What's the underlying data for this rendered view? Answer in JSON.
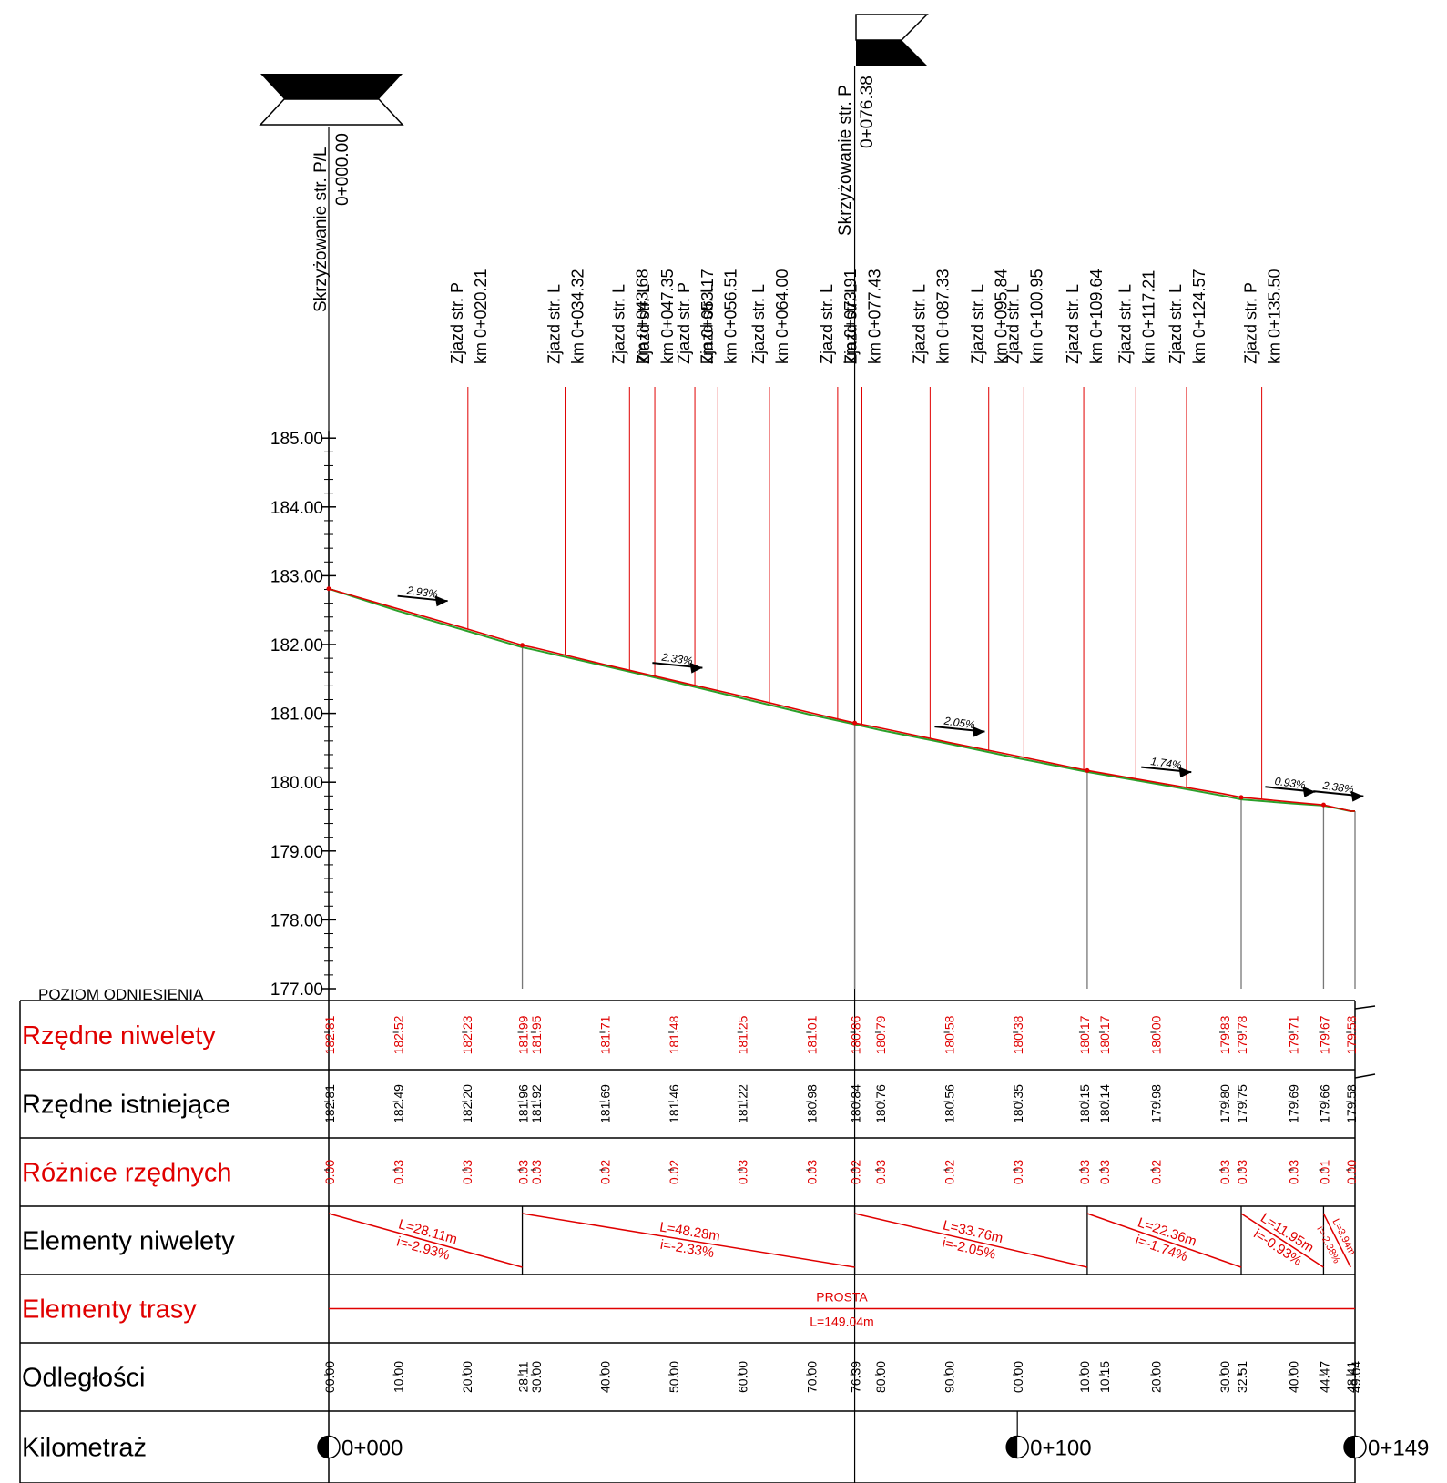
{
  "profile": {
    "yaxis_labels": [
      "185.00",
      "184.00",
      "183.00",
      "182.00",
      "181.00",
      "180.00",
      "179.00",
      "178.00",
      "177.00"
    ],
    "yaxis_values": [
      185,
      184,
      183,
      182,
      181,
      180,
      179,
      178,
      177
    ],
    "reference_label": "POZIOM ODNIESIENIA",
    "total_length": 149.04
  },
  "markers": {
    "start": {
      "label": "Skrzyżowanie str. P/L",
      "km": "0+000.00",
      "station": 0
    },
    "mid": {
      "label": "Skrzyżowanie str. P",
      "km": "0+076.38",
      "station": 76.38
    }
  },
  "annotations": [
    {
      "title": "Zjazd str. P",
      "km": "km 0+020.21",
      "station": 20.21
    },
    {
      "title": "Zjazd str. L",
      "km": "km 0+034.32",
      "station": 34.32
    },
    {
      "title": "Zjazd str. L",
      "km": "km 0+043.68",
      "station": 43.68
    },
    {
      "title": "Zjazd str. L",
      "km": "km 0+047.35",
      "station": 47.35
    },
    {
      "title": "Zjazd str. P",
      "km": "km 0+053.17",
      "station": 53.17
    },
    {
      "title": "Zjazd str. L",
      "km": "km 0+056.51",
      "station": 56.51
    },
    {
      "title": "Zjazd str. L",
      "km": "km 0+064.00",
      "station": 64.0
    },
    {
      "title": "Zjazd str. L",
      "km": "km 0+073.91",
      "station": 73.91
    },
    {
      "title": "Zjazd str. L",
      "km": "km 0+077.43",
      "station": 77.43
    },
    {
      "title": "Zjazd str. L",
      "km": "km 0+087.33",
      "station": 87.33
    },
    {
      "title": "Zjazd str. L",
      "km": "km 0+095.84",
      "station": 95.84
    },
    {
      "title": "Zjazd str. L",
      "km": "km 0+100.95",
      "station": 100.95
    },
    {
      "title": "Zjazd str. L",
      "km": "km 0+109.64",
      "station": 109.64
    },
    {
      "title": "Zjazd str. L",
      "km": "km 0+117.21",
      "station": 117.21
    },
    {
      "title": "Zjazd str. L",
      "km": "km 0+124.57",
      "station": 124.57
    },
    {
      "title": "Zjazd str. P",
      "km": "km 0+135.50",
      "station": 135.5
    }
  ],
  "grade_labels": [
    {
      "text": "2.93%",
      "station": 10
    },
    {
      "text": "2.33%",
      "station": 47
    },
    {
      "text": "2.05%",
      "station": 88
    },
    {
      "text": "1.74%",
      "station": 118
    },
    {
      "text": "0.93%",
      "station": 136
    },
    {
      "text": "2.38%",
      "station": 143
    }
  ],
  "break_stations": [
    28.11,
    76.38,
    110.15,
    132.51,
    144.47
  ],
  "chart_data": {
    "type": "line",
    "x": [
      0,
      10,
      20,
      28.11,
      30,
      40,
      50,
      60,
      70,
      76.39,
      80,
      90,
      100,
      110.15,
      120,
      130,
      132.51,
      140,
      144.47,
      148.41,
      149.04
    ],
    "series": [
      {
        "values": [
          182.81,
          182.52,
          182.23,
          181.99,
          181.95,
          181.71,
          181.48,
          181.25,
          181.01,
          180.86,
          180.79,
          180.58,
          180.38,
          180.17,
          180.0,
          179.83,
          179.78,
          179.71,
          179.67,
          179.58,
          179.58
        ]
      },
      {
        "values": [
          182.81,
          182.49,
          182.2,
          181.96,
          181.92,
          181.69,
          181.46,
          181.22,
          180.98,
          180.84,
          180.76,
          180.56,
          180.35,
          180.15,
          179.98,
          179.8,
          179.75,
          179.69,
          179.66,
          179.58,
          179.58
        ]
      }
    ],
    "ylim": [
      177,
      185
    ]
  },
  "table": {
    "rows": [
      {
        "label": "Rzędne niwelety",
        "color": "#e00000"
      },
      {
        "label": "Rzędne istniejące",
        "color": "#000000"
      },
      {
        "label": "Różnice rzędnych",
        "color": "#e00000"
      },
      {
        "label": "Elementy niwelety",
        "color": "#000000"
      },
      {
        "label": "Elementy trasy",
        "color": "#e00000"
      },
      {
        "label": "Odległości",
        "color": "#000000"
      },
      {
        "label": "Kilometraż",
        "color": "#000000"
      }
    ],
    "columns": [
      {
        "station": 0,
        "niw": "182.81",
        "ist": "182.81",
        "diff": "0.00",
        "dist": "00.00"
      },
      {
        "station": 10,
        "niw": "182.52",
        "ist": "182.49",
        "diff": "0.03",
        "dist": "10.00"
      },
      {
        "station": 20,
        "niw": "182.23",
        "ist": "182.20",
        "diff": "0.03",
        "dist": "20.00"
      },
      {
        "station": 28.11,
        "niw": "181.99",
        "ist": "181.96",
        "diff": "0.03",
        "dist": "28.11"
      },
      {
        "station": 30,
        "niw": "181.95",
        "ist": "181.92",
        "diff": "0.03",
        "dist": "30.00"
      },
      {
        "station": 40,
        "niw": "181.71",
        "ist": "181.69",
        "diff": "0.02",
        "dist": "40.00"
      },
      {
        "station": 50,
        "niw": "181.48",
        "ist": "181.46",
        "diff": "0.02",
        "dist": "50.00"
      },
      {
        "station": 60,
        "niw": "181.25",
        "ist": "181.22",
        "diff": "0.03",
        "dist": "60.00"
      },
      {
        "station": 70,
        "niw": "181.01",
        "ist": "180.98",
        "diff": "0.03",
        "dist": "70.00"
      },
      {
        "station": 76.39,
        "niw": "180.86",
        "ist": "180.84",
        "diff": "0.02",
        "dist": "76.39"
      },
      {
        "station": 80,
        "niw": "180.79",
        "ist": "180.76",
        "diff": "0.03",
        "dist": "80.00"
      },
      {
        "station": 90,
        "niw": "180.58",
        "ist": "180.56",
        "diff": "0.02",
        "dist": "90.00"
      },
      {
        "station": 100,
        "niw": "180.38",
        "ist": "180.35",
        "diff": "0.03",
        "dist": "00.00"
      },
      {
        "station": 110.15,
        "niw": "180.17",
        "ist": "180.15",
        "diff": "0.03",
        "dist": "10.00"
      },
      {
        "station": 110.15,
        "niw": "180.17",
        "ist": "180.14",
        "diff": "0.03",
        "dist": "10.15"
      },
      {
        "station": 120,
        "niw": "180.00",
        "ist": "179.98",
        "diff": "0.02",
        "dist": "20.00"
      },
      {
        "station": 130,
        "niw": "179.83",
        "ist": "179.80",
        "diff": "0.03",
        "dist": "30.00"
      },
      {
        "station": 132.51,
        "niw": "179.78",
        "ist": "179.75",
        "diff": "0.03",
        "dist": "32.51"
      },
      {
        "station": 140,
        "niw": "179.71",
        "ist": "179.69",
        "diff": "0.03",
        "dist": "40.00"
      },
      {
        "station": 144.47,
        "niw": "179.67",
        "ist": "179.66",
        "diff": "0.01",
        "dist": "44.47"
      },
      {
        "station": 148.41,
        "niw": "179.58",
        "ist": "179.58",
        "diff": "0.00",
        "dist": "48.41"
      },
      {
        "station": 149.04,
        "niw": "",
        "ist": "",
        "diff": "",
        "dist": "49.04"
      }
    ],
    "niweleta_elements": [
      {
        "from": 0,
        "to": 28.11,
        "L": "L=28.11m",
        "i": "i=-2.93%"
      },
      {
        "from": 28.11,
        "to": 76.38,
        "L": "L=48.28m",
        "i": "i=-2.33%"
      },
      {
        "from": 76.38,
        "to": 110.15,
        "L": "L=33.76m",
        "i": "i=-2.05%"
      },
      {
        "from": 110.15,
        "to": 132.51,
        "L": "L=22.36m",
        "i": "i=-1.74%"
      },
      {
        "from": 132.51,
        "to": 144.47,
        "L": "L=11.95m",
        "i": "i=-0.93%"
      },
      {
        "from": 144.47,
        "to": 148.41,
        "L": "L=3.94m",
        "i": "i=-2.38%"
      }
    ],
    "trasa": {
      "name": "PROSTA",
      "length": "L=149.04m"
    },
    "kilometraz": [
      {
        "station": 0,
        "label": "0+000"
      },
      {
        "station": 100,
        "label": "0+100"
      },
      {
        "station": 149.04,
        "label": "0+149"
      }
    ]
  }
}
